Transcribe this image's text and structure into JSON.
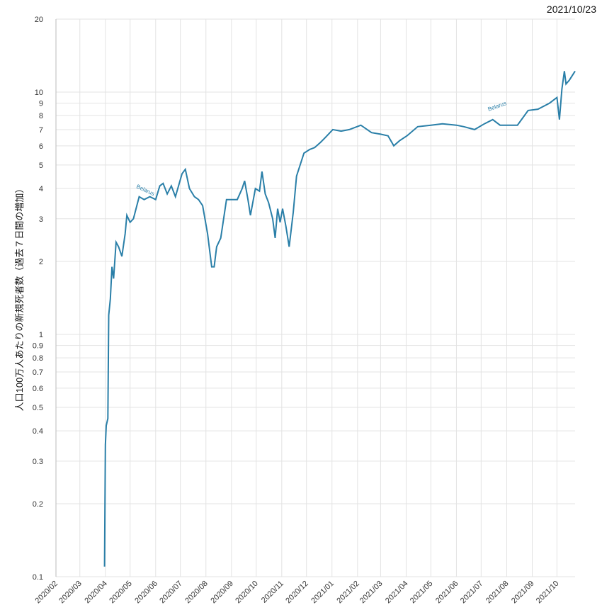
{
  "chart_data": {
    "type": "line",
    "title": "2021/10/23",
    "ylabel": "人口100万人あたりの新規死者数（過去７日間の増加）",
    "log_scale": true,
    "grid": true,
    "color": "#2a7fa8",
    "annotations": [
      "Belarus",
      "Belarus"
    ],
    "xlim": [
      "2020-02-01",
      "2021-10-23"
    ],
    "xticks": [
      {
        "value": "2020-02-01",
        "label": "2020/02"
      },
      {
        "value": "2020-03-01",
        "label": "2020/03"
      },
      {
        "value": "2020-04-01",
        "label": "2020/04"
      },
      {
        "value": "2020-05-01",
        "label": "2020/05"
      },
      {
        "value": "2020-06-01",
        "label": "2020/06"
      },
      {
        "value": "2020-07-01",
        "label": "2020/07"
      },
      {
        "value": "2020-08-01",
        "label": "2020/08"
      },
      {
        "value": "2020-09-01",
        "label": "2020/09"
      },
      {
        "value": "2020-10-01",
        "label": "2020/10"
      },
      {
        "value": "2020-11-01",
        "label": "2020/11"
      },
      {
        "value": "2020-12-01",
        "label": "2020/12"
      },
      {
        "value": "2021-01-01",
        "label": "2021/01"
      },
      {
        "value": "2021-02-01",
        "label": "2021/02"
      },
      {
        "value": "2021-03-01",
        "label": "2021/03"
      },
      {
        "value": "2021-04-01",
        "label": "2021/04"
      },
      {
        "value": "2021-05-01",
        "label": "2021/05"
      },
      {
        "value": "2021-06-01",
        "label": "2021/06"
      },
      {
        "value": "2021-07-01",
        "label": "2021/07"
      },
      {
        "value": "2021-08-01",
        "label": "2021/08"
      },
      {
        "value": "2021-09-01",
        "label": "2021/09"
      },
      {
        "value": "2021-10-01",
        "label": "2021/10"
      }
    ],
    "ylim": [
      0.1,
      20
    ],
    "yticks": [
      0.1,
      0.2,
      0.3,
      0.4,
      0.5,
      0.6,
      0.7,
      0.8,
      0.9,
      1,
      2,
      3,
      4,
      5,
      6,
      7,
      8,
      9,
      10,
      20
    ],
    "x": [
      "2020-03-31",
      "2020-04-01",
      "2020-04-02",
      "2020-04-04",
      "2020-04-05",
      "2020-04-07",
      "2020-04-09",
      "2020-04-11",
      "2020-04-14",
      "2020-04-17",
      "2020-04-21",
      "2020-04-25",
      "2020-04-27",
      "2020-05-01",
      "2020-05-05",
      "2020-05-12",
      "2020-05-18",
      "2020-05-25",
      "2020-06-01",
      "2020-06-06",
      "2020-06-10",
      "2020-06-15",
      "2020-06-20",
      "2020-06-25",
      "2020-07-03",
      "2020-07-07",
      "2020-07-12",
      "2020-07-18",
      "2020-07-23",
      "2020-07-28",
      "2020-08-03",
      "2020-08-08",
      "2020-08-11",
      "2020-08-14",
      "2020-08-19",
      "2020-08-26",
      "2020-09-01",
      "2020-09-08",
      "2020-09-14",
      "2020-09-17",
      "2020-09-21",
      "2020-09-24",
      "2020-09-30",
      "2020-10-05",
      "2020-10-08",
      "2020-10-12",
      "2020-10-16",
      "2020-10-21",
      "2020-10-24",
      "2020-10-27",
      "2020-10-30",
      "2020-11-02",
      "2020-11-06",
      "2020-11-10",
      "2020-11-15",
      "2020-11-19",
      "2020-11-28",
      "2020-12-05",
      "2020-12-11",
      "2020-12-18",
      "2020-12-24",
      "2021-01-02",
      "2021-01-12",
      "2021-01-22",
      "2021-02-05",
      "2021-02-18",
      "2021-03-01",
      "2021-03-10",
      "2021-03-17",
      "2021-03-24",
      "2021-04-02",
      "2021-04-15",
      "2021-05-01",
      "2021-05-15",
      "2021-06-01",
      "2021-06-10",
      "2021-06-23",
      "2021-07-05",
      "2021-07-15",
      "2021-07-24",
      "2021-08-05",
      "2021-08-14",
      "2021-08-27",
      "2021-09-08",
      "2021-09-22",
      "2021-10-01",
      "2021-10-04",
      "2021-10-07",
      "2021-10-10",
      "2021-10-12",
      "2021-10-16",
      "2021-10-23"
    ],
    "values": [
      0.11,
      0.35,
      0.42,
      0.45,
      1.2,
      1.4,
      1.9,
      1.7,
      2.4,
      2.3,
      2.1,
      2.6,
      3.1,
      2.9,
      3.0,
      3.7,
      3.6,
      3.7,
      3.6,
      4.1,
      4.2,
      3.8,
      4.1,
      3.7,
      4.6,
      4.8,
      4.0,
      3.7,
      3.6,
      3.4,
      2.6,
      1.9,
      1.9,
      2.3,
      2.5,
      3.6,
      3.6,
      3.6,
      4.0,
      4.3,
      3.6,
      3.1,
      4.0,
      3.9,
      4.7,
      3.8,
      3.5,
      3.0,
      2.5,
      3.3,
      2.9,
      3.3,
      2.8,
      2.3,
      3.2,
      4.5,
      5.6,
      5.8,
      5.9,
      6.2,
      6.5,
      7.0,
      6.9,
      7.0,
      7.3,
      6.8,
      6.7,
      6.6,
      6.0,
      6.3,
      6.6,
      7.2,
      7.3,
      7.4,
      7.3,
      7.2,
      7.0,
      7.4,
      7.7,
      7.3,
      7.3,
      7.3,
      8.4,
      8.5,
      9.0,
      9.5,
      7.7,
      10.3,
      12.2,
      10.8,
      11.2,
      12.2
    ]
  }
}
